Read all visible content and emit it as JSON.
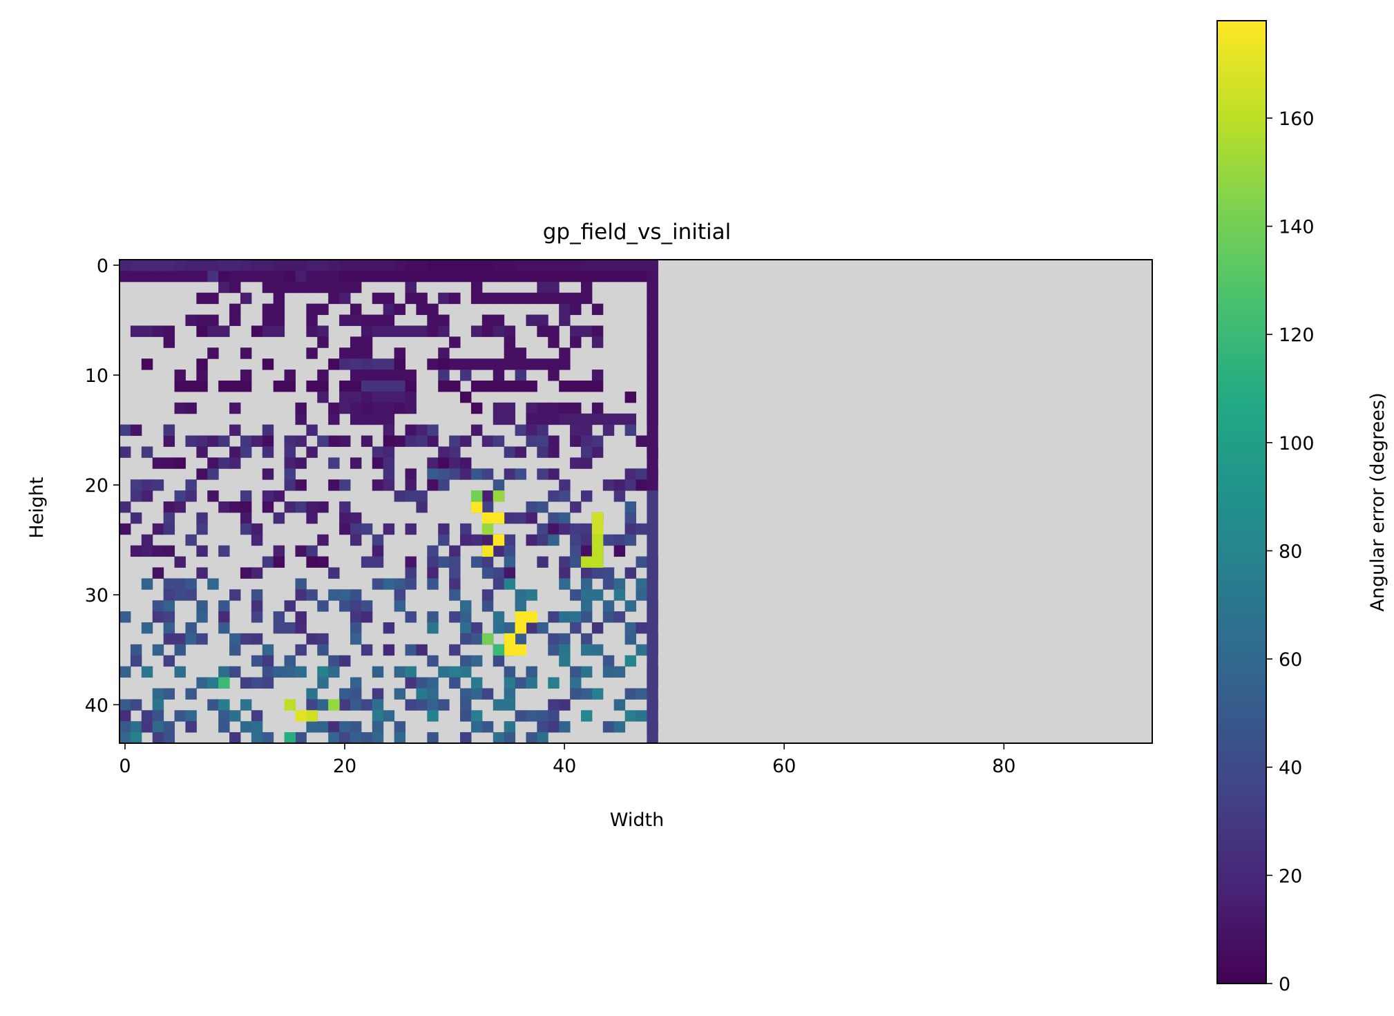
{
  "chart_data": {
    "type": "heatmap",
    "title": "gp_field_vs_initial",
    "xlabel": "Width",
    "ylabel": "Height",
    "xlim": [
      -0.5,
      93.5
    ],
    "ylim": [
      43.5,
      -0.5
    ],
    "xticks": [
      "0",
      "20",
      "40",
      "60",
      "80"
    ],
    "xtick_values": [
      0,
      20,
      40,
      60,
      80
    ],
    "yticks": [
      "0",
      "10",
      "20",
      "30",
      "40"
    ],
    "ytick_values": [
      0,
      10,
      20,
      30,
      40
    ],
    "colorbar": {
      "label": "Angular error (degrees)",
      "range": [
        0,
        178
      ],
      "ticks": [
        "0",
        "20",
        "40",
        "60",
        "80",
        "100",
        "120",
        "140",
        "160"
      ],
      "tick_values": [
        0,
        20,
        40,
        60,
        80,
        100,
        120,
        140,
        160
      ],
      "colormap": "viridis"
    },
    "nan_color": "#d3d3d3",
    "grid": false,
    "rows": 44,
    "cols": 94,
    "data_region_cols": 49,
    "rows_data": [
      "PQQQQRRRLNRRRRRNPRRRNPNNNNNNNNNNNNNNNNNNNNNNNNNNN",
      "RRRRRRRRLNRRRRRNPRRRNNNNNNNNNNNNNNNNNNNNNNNNNNNNN",
      ".........PR..RRRRRRRRR....P.....R.....PP..R.....M",
      ".......RR..P..R....RP..RR.RR.PR.RRRRRRRRRRR.....M",
      "..........R..RR..RR..R..PR.RR...........PR.R....M",
      "......QRR.R..RR..R..QQRRR...RR...RR..PP.P.......M",
      ".PPQR..NPP..NPP..QP...QPPPPPRP..PRPQ..RR.PPR....M",
      "....R.............R..RR.......R....R...R.R.P....M",
      "........R..R.....R..RRR..R...Q.....RR...R.......M",
      "..N....N.....N.....NMLMLLN..RNRRRRRRRRRRR.......M",
      ".....R.R...R...R..R..RRRRRR..L.L..R.L..R...Q....M",
      ".....NNN.NNN..NN.NN.NNLLLLN..NN.NNNNNN..NNNN....M",
      "..................P.PPQPPPQ....N..............N.M",
      ".....QR...Q.....R..RPQRQQRQ.....N.PP.PQQRR.R....M",
      "................Q..Q.QQQQ.........PP.QQQPPPPPPP.M",
      "....R.............................................M",
      "....Q..R.......Q..RRQ.Q.....Q..........Q.......M.",
      "...........................................P.....",
      "..........................................P......",
      ".......................................P.........",
      "..........................................................",
      ".....................................................",
      "..........................................................",
      "..........................................................",
      "..........................................................",
      "..........................................................",
      "..........................................................",
      "..........................................................",
      "..........................................................",
      "..........................................................",
      "..........................................................",
      "..........................................................",
      "..........................................................",
      "..........................................................",
      "..........................................................",
      "..........................................................",
      "..........................................................",
      "..........................................................",
      "..........................................................",
      "..........................................................",
      "..........................................................",
      "..........................................................",
      "..........................................................",
      ".........................................................."
    ],
    "cells": [
      {
        "r": 0,
        "c": 0,
        "v": 18
      },
      {
        "r": 0,
        "c": 1,
        "v": 20
      },
      {
        "r": 0,
        "c": 2,
        "v": 20
      },
      {
        "r": 0,
        "c": 3,
        "v": 20
      },
      {
        "r": 0,
        "c": 4,
        "v": 20
      },
      {
        "r": 0,
        "c": 5,
        "v": 18
      },
      {
        "r": 0,
        "c": 6,
        "v": 16
      },
      {
        "r": 0,
        "c": 7,
        "v": 16
      },
      {
        "r": 0,
        "c": 8,
        "v": 16
      },
      {
        "r": 0,
        "c": 9,
        "v": 18
      },
      {
        "r": 0,
        "c": 10,
        "v": 18
      },
      {
        "r": 0,
        "c": 11,
        "v": 16
      },
      {
        "r": 0,
        "c": 12,
        "v": 14
      },
      {
        "r": 0,
        "c": 13,
        "v": 14
      },
      {
        "r": 0,
        "c": 14,
        "v": 12
      },
      {
        "r": 0,
        "c": 15,
        "v": 12
      },
      {
        "r": 0,
        "c": 16,
        "v": 12
      },
      {
        "r": 0,
        "c": 17,
        "v": 14
      },
      {
        "r": 0,
        "c": 18,
        "v": 14
      },
      {
        "r": 0,
        "c": 19,
        "v": 12
      },
      {
        "r": 0,
        "c": 20,
        "v": 10
      },
      {
        "r": 0,
        "c": 21,
        "v": 10
      },
      {
        "r": 0,
        "c": 22,
        "v": 10
      },
      {
        "r": 0,
        "c": 23,
        "v": 10
      },
      {
        "r": 0,
        "c": 24,
        "v": 10
      },
      {
        "r": 0,
        "c": 25,
        "v": 8
      },
      {
        "r": 0,
        "c": 26,
        "v": 6
      },
      {
        "r": 0,
        "c": 27,
        "v": 6
      },
      {
        "r": 0,
        "c": 28,
        "v": 4
      },
      {
        "r": 0,
        "c": 29,
        "v": 4
      },
      {
        "r": 0,
        "c": 30,
        "v": 4
      },
      {
        "r": 0,
        "c": 31,
        "v": 4
      },
      {
        "r": 0,
        "c": 32,
        "v": 4
      },
      {
        "r": 0,
        "c": 33,
        "v": 4
      },
      {
        "r": 0,
        "c": 34,
        "v": 6
      },
      {
        "r": 0,
        "c": 35,
        "v": 6
      },
      {
        "r": 0,
        "c": 36,
        "v": 8
      },
      {
        "r": 0,
        "c": 37,
        "v": 8
      },
      {
        "r": 0,
        "c": 38,
        "v": 8
      },
      {
        "r": 0,
        "c": 39,
        "v": 8
      },
      {
        "r": 0,
        "c": 40,
        "v": 8
      },
      {
        "r": 0,
        "c": 41,
        "v": 8
      },
      {
        "r": 0,
        "c": 42,
        "v": 10
      },
      {
        "r": 0,
        "c": 43,
        "v": 10
      },
      {
        "r": 0,
        "c": 44,
        "v": 10
      },
      {
        "r": 0,
        "c": 45,
        "v": 10
      },
      {
        "r": 0,
        "c": 46,
        "v": 10
      },
      {
        "r": 0,
        "c": 47,
        "v": 10
      },
      {
        "r": 0,
        "c": 48,
        "v": 10
      },
      {
        "r": 22,
        "c": 32,
        "v": 178
      },
      {
        "r": 23,
        "c": 33,
        "v": 178
      },
      {
        "r": 23,
        "c": 34,
        "v": 178
      },
      {
        "r": 24,
        "c": 33,
        "v": 150
      },
      {
        "r": 25,
        "c": 34,
        "v": 178
      },
      {
        "r": 26,
        "c": 33,
        "v": 175
      },
      {
        "r": 21,
        "c": 32,
        "v": 140
      },
      {
        "r": 21,
        "c": 34,
        "v": 150
      },
      {
        "r": 23,
        "c": 43,
        "v": 165
      },
      {
        "r": 24,
        "c": 43,
        "v": 165
      },
      {
        "r": 25,
        "c": 43,
        "v": 160
      },
      {
        "r": 26,
        "c": 43,
        "v": 160
      },
      {
        "r": 27,
        "c": 42,
        "v": 160
      },
      {
        "r": 27,
        "c": 43,
        "v": 160
      },
      {
        "r": 32,
        "c": 36,
        "v": 178
      },
      {
        "r": 32,
        "c": 37,
        "v": 178
      },
      {
        "r": 33,
        "c": 36,
        "v": 178
      },
      {
        "r": 34,
        "c": 35,
        "v": 178
      },
      {
        "r": 35,
        "c": 35,
        "v": 178
      },
      {
        "r": 35,
        "c": 36,
        "v": 178
      },
      {
        "r": 34,
        "c": 33,
        "v": 140
      },
      {
        "r": 35,
        "c": 34,
        "v": 120
      },
      {
        "r": 40,
        "c": 15,
        "v": 160
      },
      {
        "r": 41,
        "c": 16,
        "v": 170
      },
      {
        "r": 41,
        "c": 17,
        "v": 165
      },
      {
        "r": 40,
        "c": 19,
        "v": 150
      },
      {
        "r": 38,
        "c": 9,
        "v": 120
      },
      {
        "r": 43,
        "c": 15,
        "v": 110
      }
    ]
  }
}
